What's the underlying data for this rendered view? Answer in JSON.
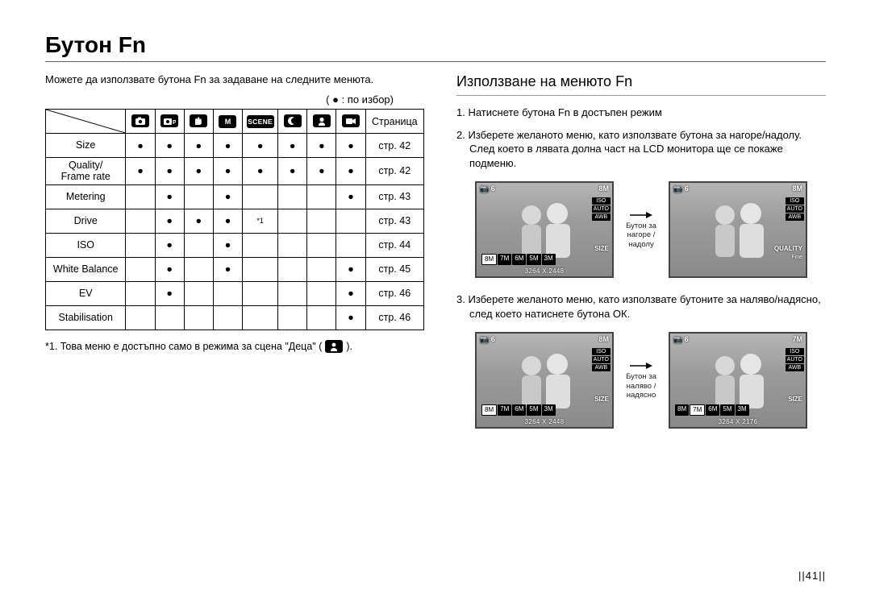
{
  "title": "Бутон Fn",
  "intro": "Можете да използвате бутона Fn за задаване на следните менюта.",
  "legend": "( ● : по избор)",
  "table": {
    "page_header": "Страница",
    "modes": [
      {
        "name": "mode-auto",
        "kind": "svg-camera"
      },
      {
        "name": "mode-program",
        "kind": "svg-camera-p"
      },
      {
        "name": "mode-dual-is",
        "kind": "svg-hand"
      },
      {
        "name": "mode-manual",
        "kind": "text",
        "label": "M"
      },
      {
        "name": "mode-scene",
        "kind": "text-wide",
        "label": "SCENE"
      },
      {
        "name": "mode-night",
        "kind": "svg-moon"
      },
      {
        "name": "mode-portrait",
        "kind": "svg-face"
      },
      {
        "name": "mode-movie",
        "kind": "svg-movie"
      }
    ],
    "rows": [
      {
        "label": "Size",
        "dots": [
          1,
          1,
          1,
          1,
          1,
          1,
          1,
          1
        ],
        "page": "стр. 42",
        "marks": {}
      },
      {
        "label": "Quality/\nFrame rate",
        "dots": [
          1,
          1,
          1,
          1,
          1,
          1,
          1,
          1
        ],
        "page": "стр. 42",
        "marks": {}
      },
      {
        "label": "Metering",
        "dots": [
          0,
          1,
          0,
          1,
          0,
          0,
          0,
          1
        ],
        "page": "стр. 43",
        "marks": {}
      },
      {
        "label": "Drive",
        "dots": [
          0,
          1,
          1,
          1,
          0,
          0,
          0,
          0
        ],
        "page": "стр. 43",
        "marks": {
          "4": "*1"
        }
      },
      {
        "label": "ISO",
        "dots": [
          0,
          1,
          0,
          1,
          0,
          0,
          0,
          0
        ],
        "page": "стр. 44",
        "marks": {}
      },
      {
        "label": "White Balance",
        "dots": [
          0,
          1,
          0,
          1,
          0,
          0,
          0,
          1
        ],
        "page": "стр. 45",
        "marks": {}
      },
      {
        "label": "EV",
        "dots": [
          0,
          1,
          0,
          0,
          0,
          0,
          0,
          1
        ],
        "page": "стр. 46",
        "marks": {}
      },
      {
        "label": "Stabilisation",
        "dots": [
          0,
          0,
          0,
          0,
          0,
          0,
          0,
          1
        ],
        "page": "стр. 46",
        "marks": {}
      }
    ]
  },
  "footnote": "*1. Това меню е достъпно само в режима за сцена \"Деца\" (",
  "footnote_icon": "mode-portrait",
  "footnote_after": ").",
  "right": {
    "heading": "Използване на менюто Fn",
    "step1": "Натиснете бутона Fn в достъпен режим",
    "step2": "Изберете желаното меню, като използвате бутона за нагоре/надолу. След което в лявата долна част на LCD монитора ще се покаже подменю.",
    "step3": "Изберете желаното меню, като използвате бутоните за наляво/надясно, след което натиснете бутона ОК.",
    "arrow1_caption": "Бутон за\nнагоре / надолу",
    "arrow2_caption": "Бутон за\nналяво / надясно",
    "lcd": {
      "top_left": "6",
      "top_right": "8M",
      "right_badges": [
        "ISO",
        "AUTO",
        "AWB"
      ],
      "size_label": "SIZE",
      "quality_label": "QUALITY",
      "quality_value": "Fine",
      "strip1": [
        "8M",
        "7M",
        "6M",
        "5M",
        "3M"
      ],
      "res1": "3264 X 2448",
      "strip2": [
        "8M",
        "7M",
        "6M",
        "5M",
        "3M"
      ],
      "res2_left": "3264 X 2448",
      "res2_right": "3264 X 2176",
      "top_right_alt": "7M"
    }
  },
  "page_number": "||41||",
  "colors": {
    "text": "#000000",
    "bg": "#ffffff",
    "rule": "#666666",
    "icon_bg": "#000000",
    "icon_fg": "#ffffff",
    "lcd_border": "#444444"
  }
}
